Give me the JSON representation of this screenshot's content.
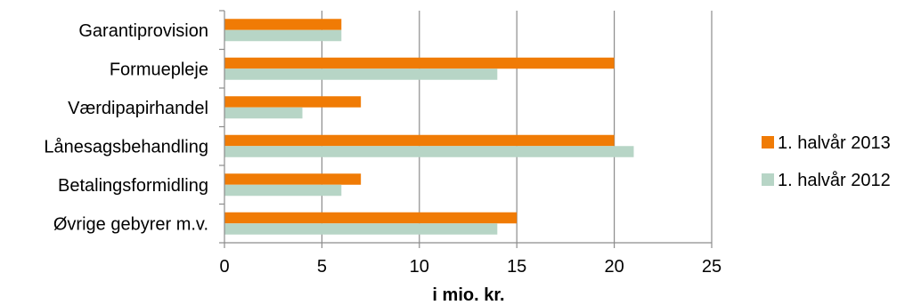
{
  "chart_data": {
    "type": "bar",
    "orientation": "horizontal",
    "categories": [
      "Garantiprovision",
      "Formuepleje",
      "Værdipapirhandel",
      "Lånesagsbehandling",
      "Betalingsformidling",
      "Øvrige gebyrer m.v."
    ],
    "series": [
      {
        "name": "1. halvår 2013",
        "color": "#F07B05",
        "values": [
          6,
          20,
          7,
          20,
          7,
          15
        ]
      },
      {
        "name": "1. halvår 2012",
        "color": "#B7D5C6",
        "values": [
          6,
          14,
          4,
          21,
          6,
          14
        ]
      }
    ],
    "xlabel": "i mio. kr.",
    "ylabel": "",
    "xlim": [
      0,
      25
    ],
    "xticks": [
      0,
      5,
      10,
      15,
      20,
      25
    ],
    "xtick_labels": [
      "0",
      "5",
      "10",
      "15",
      "20",
      "25"
    ],
    "grid": "vertical",
    "legend_position": "right"
  }
}
